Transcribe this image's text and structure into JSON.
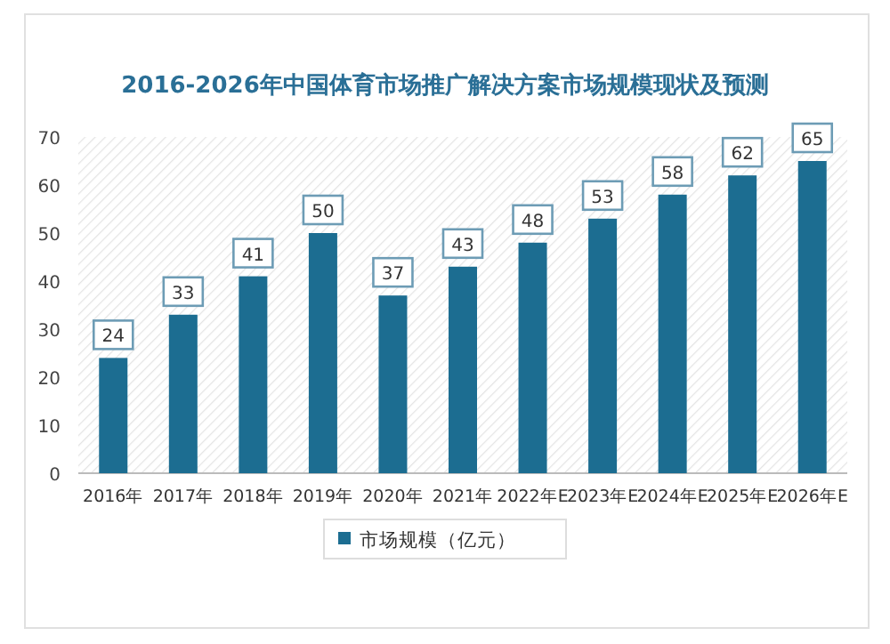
{
  "chart_data": {
    "type": "bar",
    "title": "2016-2026年中国体育市场推广解决方案市场规模现状及预测",
    "categories": [
      "2016年",
      "2017年",
      "2018年",
      "2019年",
      "2020年",
      "2021年",
      "2022年E",
      "2023年E",
      "2024年E",
      "2025年E",
      "2026年E"
    ],
    "series": [
      {
        "name": "市场规模（亿元）",
        "color": "#1c6d91",
        "values": [
          24,
          33,
          41,
          50,
          37,
          43,
          48,
          53,
          58,
          62,
          65
        ]
      }
    ],
    "ylim": [
      0,
      70
    ],
    "yticks": [
      0,
      10,
      20,
      30,
      40,
      50,
      60,
      70
    ],
    "data_labels": true,
    "legend": "bottom",
    "grid": false
  }
}
